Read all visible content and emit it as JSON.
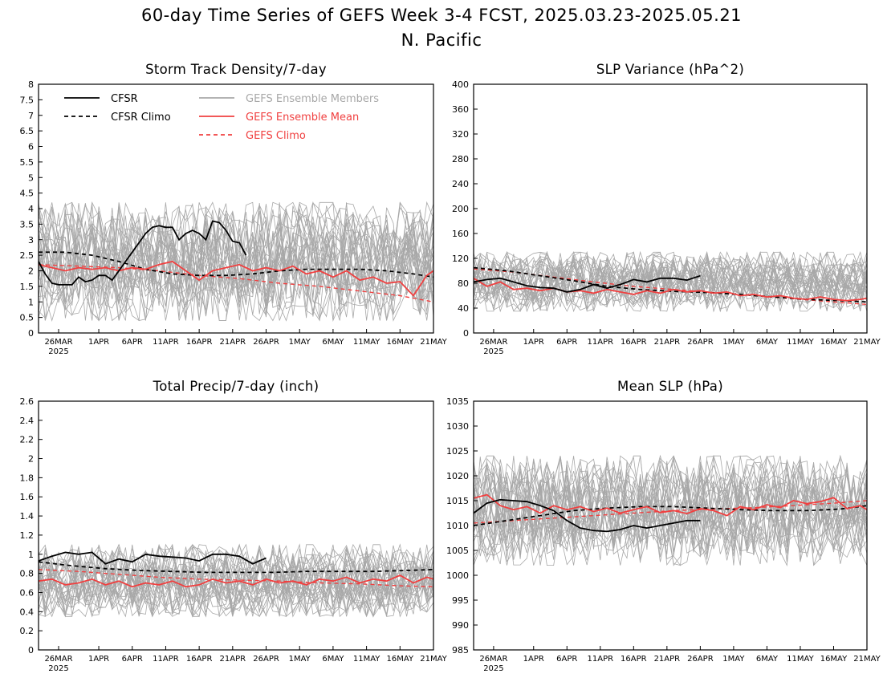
{
  "figure": {
    "title_line1": "60-day Time Series of GEFS Week 3-4 FCST, 2025.03.23-2025.05.21",
    "title_line2": "N. Pacific"
  },
  "colors": {
    "cfsr": "#000000",
    "members": "#a8a8a8",
    "ens_mean": "#f04040",
    "gefs_climo": "#f04040"
  },
  "legend": {
    "cfsr": "CFSR",
    "cfsr_climo": "CFSR Climo",
    "members": "GEFS Ensemble Members",
    "ens_mean": "GEFS Ensemble Mean",
    "gefs_climo": "GEFS Climo"
  },
  "x_axis": {
    "range": [
      "2025-03-23",
      "2025-05-21"
    ],
    "tick_labels": [
      "26MAR",
      "1APR",
      "6APR",
      "11APR",
      "16APR",
      "21APR",
      "26APR",
      "1MAY",
      "6MAY",
      "11MAY",
      "16MAY",
      "21MAY"
    ],
    "tick_days": [
      3,
      9,
      14,
      19,
      24,
      29,
      34,
      39,
      44,
      49,
      54,
      59
    ],
    "year_label": "2025"
  },
  "chart_data": [
    {
      "type": "line",
      "title": "Storm Track Density/7-day",
      "ylim": [
        0,
        8
      ],
      "yticks": [
        "0",
        "0.5",
        "1",
        "1.5",
        "2",
        "2.5",
        "3",
        "3.5",
        "4",
        "4.5",
        "5",
        "5.5",
        "6",
        "6.5",
        "7",
        "7.5",
        "8"
      ],
      "member_range": [
        0.4,
        4.2
      ],
      "cfsr": {
        "x": [
          0,
          1,
          2,
          3,
          4,
          5,
          6,
          7,
          8,
          9,
          10,
          11,
          12,
          13,
          14,
          15,
          16,
          17,
          18,
          19,
          20,
          21,
          22,
          23,
          24,
          25,
          26,
          27,
          28,
          29,
          30,
          31
        ],
        "y": [
          2.3,
          1.9,
          1.6,
          1.55,
          1.55,
          1.55,
          1.8,
          1.65,
          1.7,
          1.85,
          1.85,
          1.7,
          2.0,
          2.3,
          2.6,
          2.9,
          3.2,
          3.4,
          3.45,
          3.4,
          3.4,
          3.0,
          3.2,
          3.3,
          3.2,
          3.0,
          3.6,
          3.55,
          3.3,
          2.95,
          2.9,
          2.5
        ]
      },
      "cfsr_climo": {
        "x": [
          0,
          4,
          8,
          12,
          16,
          20,
          24,
          28,
          32,
          36,
          40,
          44,
          48,
          52,
          56,
          59
        ],
        "y": [
          2.6,
          2.6,
          2.5,
          2.3,
          2.05,
          1.9,
          1.85,
          1.85,
          1.9,
          2.0,
          2.05,
          2.05,
          2.05,
          2.0,
          1.9,
          1.8
        ]
      },
      "ens_mean": {
        "x": [
          0,
          2,
          4,
          6,
          8,
          10,
          12,
          14,
          16,
          18,
          20,
          22,
          24,
          26,
          28,
          30,
          32,
          34,
          36,
          38,
          40,
          42,
          44,
          46,
          48,
          50,
          52,
          54,
          56,
          58,
          59
        ],
        "y": [
          2.2,
          2.1,
          2.0,
          2.1,
          2.05,
          2.1,
          2.0,
          2.1,
          2.05,
          2.2,
          2.3,
          2.0,
          1.7,
          2.0,
          2.1,
          2.2,
          2.0,
          2.1,
          2.0,
          2.15,
          1.9,
          2.0,
          1.8,
          2.0,
          1.7,
          1.8,
          1.6,
          1.65,
          1.2,
          1.85,
          2.0
        ]
      },
      "gefs_climo": {
        "x": [
          0,
          6,
          12,
          18,
          24,
          30,
          36,
          42,
          48,
          54,
          59
        ],
        "y": [
          2.2,
          2.15,
          2.1,
          2.0,
          1.85,
          1.75,
          1.6,
          1.5,
          1.35,
          1.2,
          1.0
        ]
      }
    },
    {
      "type": "line",
      "title": "SLP Variance (hPa^2)",
      "ylim": [
        0,
        400
      ],
      "yticks": [
        "0",
        "40",
        "80",
        "120",
        "160",
        "200",
        "240",
        "280",
        "320",
        "360",
        "400"
      ],
      "member_range": [
        35,
        130
      ],
      "cfsr": {
        "x": [
          0,
          2,
          4,
          6,
          8,
          10,
          12,
          14,
          16,
          18,
          20,
          22,
          24,
          26,
          28,
          30,
          32,
          34
        ],
        "y": [
          82,
          86,
          88,
          82,
          76,
          73,
          72,
          66,
          70,
          78,
          72,
          78,
          86,
          82,
          88,
          88,
          85,
          92
        ]
      },
      "cfsr_climo": {
        "x": [
          0,
          5,
          10,
          15,
          20,
          25,
          30,
          35,
          40,
          45,
          50,
          55,
          59
        ],
        "y": [
          105,
          100,
          92,
          84,
          75,
          70,
          67,
          65,
          62,
          58,
          54,
          52,
          50
        ]
      },
      "ens_mean": {
        "x": [
          0,
          2,
          4,
          6,
          8,
          10,
          12,
          14,
          16,
          18,
          20,
          22,
          24,
          26,
          28,
          30,
          32,
          34,
          36,
          38,
          40,
          42,
          44,
          46,
          48,
          50,
          52,
          54,
          56,
          58,
          59
        ],
        "y": [
          88,
          75,
          82,
          70,
          72,
          68,
          72,
          66,
          68,
          64,
          70,
          66,
          62,
          68,
          64,
          70,
          66,
          68,
          64,
          66,
          60,
          62,
          58,
          60,
          56,
          54,
          58,
          54,
          52,
          54,
          56
        ]
      },
      "gefs_climo": {
        "x": [
          0,
          6,
          12,
          18,
          24,
          30,
          36,
          42,
          48,
          54,
          59
        ],
        "y": [
          103,
          98,
          90,
          82,
          75,
          70,
          65,
          60,
          55,
          50,
          46
        ]
      }
    },
    {
      "type": "line",
      "title": "Total Precip/7-day (inch)",
      "ylim": [
        0,
        2.6
      ],
      "yticks": [
        "0",
        "0.2",
        "0.4",
        "0.6",
        "0.8",
        "1",
        "1.2",
        "1.4",
        "1.6",
        "1.8",
        "2",
        "2.2",
        "2.4",
        "2.6"
      ],
      "member_range": [
        0.35,
        1.1
      ],
      "cfsr": {
        "x": [
          0,
          2,
          4,
          6,
          8,
          10,
          12,
          14,
          16,
          18,
          20,
          22,
          24,
          26,
          28,
          30,
          32,
          34
        ],
        "y": [
          0.93,
          0.98,
          1.02,
          1.0,
          1.02,
          0.9,
          0.95,
          0.92,
          1.0,
          0.98,
          0.97,
          0.96,
          0.93,
          1.0,
          1.0,
          0.98,
          0.9,
          0.96
        ]
      },
      "cfsr_climo": {
        "x": [
          0,
          5,
          10,
          15,
          20,
          25,
          30,
          35,
          40,
          45,
          50,
          55,
          59
        ],
        "y": [
          0.92,
          0.88,
          0.85,
          0.83,
          0.82,
          0.81,
          0.81,
          0.81,
          0.82,
          0.82,
          0.82,
          0.83,
          0.84
        ]
      },
      "ens_mean": {
        "x": [
          0,
          2,
          4,
          6,
          8,
          10,
          12,
          14,
          16,
          18,
          20,
          22,
          24,
          26,
          28,
          30,
          32,
          34,
          36,
          38,
          40,
          42,
          44,
          46,
          48,
          50,
          52,
          54,
          56,
          58,
          59
        ],
        "y": [
          0.72,
          0.74,
          0.68,
          0.7,
          0.74,
          0.68,
          0.72,
          0.66,
          0.7,
          0.68,
          0.72,
          0.66,
          0.68,
          0.74,
          0.7,
          0.72,
          0.68,
          0.74,
          0.7,
          0.72,
          0.68,
          0.74,
          0.72,
          0.76,
          0.7,
          0.74,
          0.72,
          0.78,
          0.7,
          0.76,
          0.74
        ]
      },
      "gefs_climo": {
        "x": [
          0,
          6,
          12,
          18,
          24,
          30,
          36,
          42,
          48,
          54,
          59
        ],
        "y": [
          0.84,
          0.82,
          0.79,
          0.76,
          0.74,
          0.73,
          0.72,
          0.7,
          0.69,
          0.67,
          0.66
        ]
      }
    },
    {
      "type": "line",
      "title": "Mean SLP (hPa)",
      "ylim": [
        985,
        1035
      ],
      "yticks": [
        "985",
        "990",
        "995",
        "1000",
        "1005",
        "1010",
        "1015",
        "1020",
        "1025",
        "1030",
        "1035"
      ],
      "member_range": [
        1002,
        1024
      ],
      "cfsr": {
        "x": [
          0,
          2,
          4,
          6,
          8,
          10,
          12,
          14,
          16,
          18,
          20,
          22,
          24,
          26,
          28,
          30,
          32,
          34
        ],
        "y": [
          1012.5,
          1014.5,
          1015.2,
          1015.0,
          1014.8,
          1014.0,
          1013.0,
          1011.0,
          1009.5,
          1009.0,
          1008.8,
          1009.2,
          1010.0,
          1009.5,
          1010.0,
          1010.5,
          1011.0,
          1011.0
        ]
      },
      "cfsr_climo": {
        "x": [
          0,
          5,
          10,
          15,
          20,
          25,
          30,
          35,
          40,
          45,
          50,
          55,
          59
        ],
        "y": [
          1010.0,
          1011.0,
          1012.0,
          1013.0,
          1013.5,
          1013.8,
          1013.8,
          1013.5,
          1013.2,
          1013.0,
          1013.0,
          1013.3,
          1014.0
        ]
      },
      "ens_mean": {
        "x": [
          0,
          2,
          4,
          6,
          8,
          10,
          12,
          14,
          16,
          18,
          20,
          22,
          24,
          26,
          28,
          30,
          32,
          34,
          36,
          38,
          40,
          42,
          44,
          46,
          48,
          50,
          52,
          54,
          56,
          58,
          59
        ],
        "y": [
          1015.5,
          1016.2,
          1014.0,
          1013.2,
          1013.8,
          1012.5,
          1014.0,
          1013.2,
          1013.8,
          1012.8,
          1013.5,
          1012.5,
          1013.2,
          1013.8,
          1012.6,
          1013.0,
          1012.4,
          1013.4,
          1013.0,
          1012.0,
          1013.8,
          1013.2,
          1014.2,
          1013.6,
          1015.0,
          1014.4,
          1014.8,
          1015.6,
          1013.4,
          1014.0,
          1013.2
        ]
      },
      "gefs_climo": {
        "x": [
          0,
          6,
          12,
          18,
          24,
          30,
          36,
          42,
          48,
          54,
          59
        ],
        "y": [
          1010.5,
          1011.0,
          1011.5,
          1012.0,
          1012.5,
          1013.0,
          1013.3,
          1013.6,
          1014.0,
          1014.5,
          1015.0
        ]
      }
    }
  ]
}
